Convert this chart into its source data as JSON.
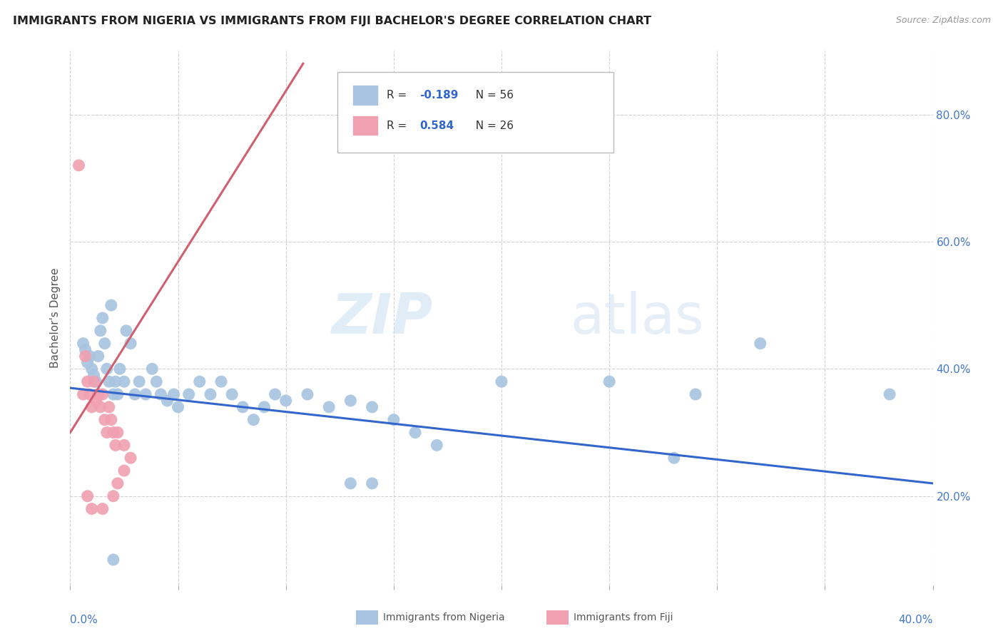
{
  "title": "IMMIGRANTS FROM NIGERIA VS IMMIGRANTS FROM FIJI BACHELOR'S DEGREE CORRELATION CHART",
  "source": "Source: ZipAtlas.com",
  "ylabel": "Bachelor's Degree",
  "nigeria_color": "#a8c4e0",
  "fiji_color": "#f0a0b0",
  "nigeria_line_color": "#3366cc",
  "fiji_line_color": "#d06070",
  "watermark_zip": "ZIP",
  "watermark_atlas": "atlas",
  "legend_r_nigeria": "-0.189",
  "legend_n_nigeria": "56",
  "legend_r_fiji": "0.584",
  "legend_n_fiji": "26",
  "legend_label_nigeria": "Immigrants from Nigeria",
  "legend_label_fiji": "Immigrants from Fiji",
  "xmin": 0.0,
  "xmax": 0.4,
  "ymin": 0.06,
  "ymax": 0.9,
  "yticks": [
    0.2,
    0.4,
    0.6,
    0.8
  ],
  "nigeria_line_x0": 0.0,
  "nigeria_line_y0": 0.37,
  "nigeria_line_x1": 0.4,
  "nigeria_line_y1": 0.22,
  "fiji_line_x0": 0.0,
  "fiji_line_y0": 0.3,
  "fiji_line_x1": 0.108,
  "fiji_line_y1": 0.88,
  "nigeria_points": [
    [
      0.006,
      0.44
    ],
    [
      0.007,
      0.43
    ],
    [
      0.008,
      0.41
    ],
    [
      0.009,
      0.42
    ],
    [
      0.01,
      0.4
    ],
    [
      0.011,
      0.39
    ],
    [
      0.012,
      0.38
    ],
    [
      0.013,
      0.42
    ],
    [
      0.014,
      0.46
    ],
    [
      0.015,
      0.48
    ],
    [
      0.016,
      0.44
    ],
    [
      0.017,
      0.4
    ],
    [
      0.018,
      0.38
    ],
    [
      0.019,
      0.5
    ],
    [
      0.02,
      0.36
    ],
    [
      0.021,
      0.38
    ],
    [
      0.022,
      0.36
    ],
    [
      0.023,
      0.4
    ],
    [
      0.025,
      0.38
    ],
    [
      0.026,
      0.46
    ],
    [
      0.028,
      0.44
    ],
    [
      0.03,
      0.36
    ],
    [
      0.032,
      0.38
    ],
    [
      0.035,
      0.36
    ],
    [
      0.038,
      0.4
    ],
    [
      0.04,
      0.38
    ],
    [
      0.042,
      0.36
    ],
    [
      0.045,
      0.35
    ],
    [
      0.048,
      0.36
    ],
    [
      0.05,
      0.34
    ],
    [
      0.055,
      0.36
    ],
    [
      0.06,
      0.38
    ],
    [
      0.065,
      0.36
    ],
    [
      0.07,
      0.38
    ],
    [
      0.075,
      0.36
    ],
    [
      0.08,
      0.34
    ],
    [
      0.085,
      0.32
    ],
    [
      0.09,
      0.34
    ],
    [
      0.095,
      0.36
    ],
    [
      0.1,
      0.35
    ],
    [
      0.11,
      0.36
    ],
    [
      0.12,
      0.34
    ],
    [
      0.13,
      0.35
    ],
    [
      0.14,
      0.34
    ],
    [
      0.15,
      0.32
    ],
    [
      0.16,
      0.3
    ],
    [
      0.17,
      0.28
    ],
    [
      0.02,
      0.1
    ],
    [
      0.13,
      0.22
    ],
    [
      0.14,
      0.22
    ],
    [
      0.28,
      0.26
    ],
    [
      0.29,
      0.36
    ],
    [
      0.32,
      0.44
    ],
    [
      0.38,
      0.36
    ],
    [
      0.2,
      0.38
    ],
    [
      0.25,
      0.38
    ]
  ],
  "fiji_points": [
    [
      0.004,
      0.72
    ],
    [
      0.006,
      0.36
    ],
    [
      0.007,
      0.42
    ],
    [
      0.008,
      0.38
    ],
    [
      0.009,
      0.36
    ],
    [
      0.01,
      0.34
    ],
    [
      0.011,
      0.38
    ],
    [
      0.012,
      0.35
    ],
    [
      0.013,
      0.36
    ],
    [
      0.014,
      0.34
    ],
    [
      0.015,
      0.36
    ],
    [
      0.016,
      0.32
    ],
    [
      0.017,
      0.3
    ],
    [
      0.018,
      0.34
    ],
    [
      0.019,
      0.32
    ],
    [
      0.02,
      0.3
    ],
    [
      0.021,
      0.28
    ],
    [
      0.022,
      0.3
    ],
    [
      0.025,
      0.28
    ],
    [
      0.028,
      0.26
    ],
    [
      0.008,
      0.2
    ],
    [
      0.01,
      0.18
    ],
    [
      0.015,
      0.18
    ],
    [
      0.02,
      0.2
    ],
    [
      0.022,
      0.22
    ],
    [
      0.025,
      0.24
    ]
  ]
}
